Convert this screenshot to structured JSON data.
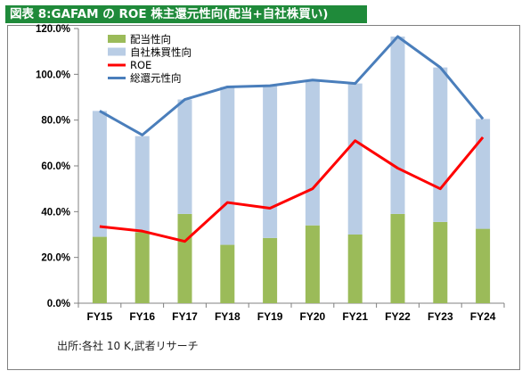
{
  "title": "図表 8:GAFAM の ROE 株主還元性向(配当+自社株買い)",
  "source": "出所:各社 10 K,武者リサーチ",
  "colors": {
    "title_bg": "#1f8a3a",
    "dividend": "#9bbb59",
    "buyback": "#b9cde5",
    "roe": "#ff0000",
    "total": "#4a7ebb"
  },
  "chart_data": {
    "type": "bar",
    "title": "",
    "xlabel": "",
    "ylabel": "",
    "categories": [
      "FY15",
      "FY16",
      "FY17",
      "FY18",
      "FY19",
      "FY20",
      "FY21",
      "FY22",
      "FY23",
      "FY24"
    ],
    "ylim": [
      0,
      120
    ],
    "yticks": [
      "0.0%",
      "20.0%",
      "40.0%",
      "60.0%",
      "80.0%",
      "100.0%",
      "120.0%"
    ],
    "grid": false,
    "legend_position": "top-left",
    "stacked_bars": [
      {
        "name": "配当性向",
        "color": "#9bbb59",
        "values": [
          29,
          31,
          39,
          25.5,
          28.5,
          34,
          30,
          39,
          35.5,
          32.5
        ]
      },
      {
        "name": "自社株買性向",
        "color": "#b9cde5",
        "values": [
          55,
          42,
          50,
          69,
          66.5,
          63,
          66,
          77.5,
          67.5,
          48
        ]
      }
    ],
    "lines": [
      {
        "name": "ROE",
        "color": "#ff0000",
        "values": [
          33.5,
          31.5,
          27,
          44,
          41.5,
          50,
          71,
          59,
          50,
          72.5
        ]
      },
      {
        "name": "総還元性向",
        "color": "#4a7ebb",
        "values": [
          84,
          73.5,
          89,
          94.5,
          95,
          97.5,
          96,
          116.5,
          103,
          80.5
        ]
      }
    ]
  }
}
